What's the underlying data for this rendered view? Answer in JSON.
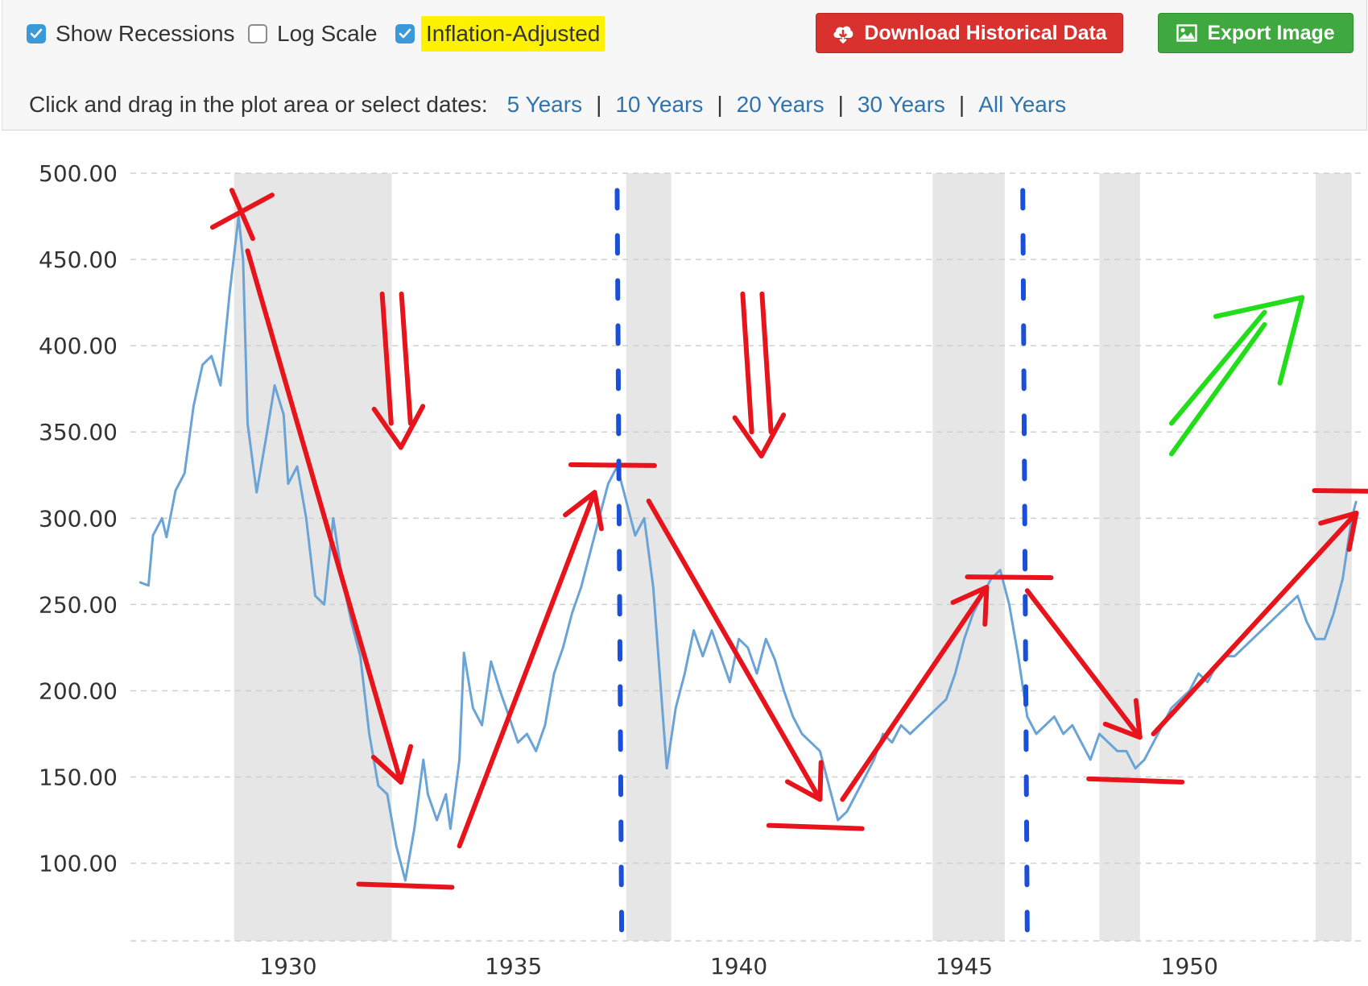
{
  "toolbar": {
    "options": [
      {
        "label": "Show Recessions",
        "checked": true
      },
      {
        "label": "Log Scale",
        "checked": false
      },
      {
        "label": "Inflation-Adjusted",
        "checked": true,
        "highlight": "#fff200"
      }
    ],
    "download_label": "Download Historical Data",
    "export_label": "Export Image",
    "download_icon": "cloud-download-icon",
    "export_icon": "image-icon",
    "colors": {
      "download": "#d9322e",
      "export": "#3fa83f",
      "link": "#3173ad",
      "checkbox": "#3a99d8"
    }
  },
  "range_selector": {
    "prompt": "Click and drag in the plot area or select dates:",
    "links": [
      "5 Years",
      "10 Years",
      "20 Years",
      "30 Years",
      "All Years"
    ],
    "separator": "|"
  },
  "chart_data": {
    "type": "line",
    "title": "",
    "xlabel": "",
    "ylabel": "",
    "ylim": [
      55,
      500
    ],
    "xlim": [
      1926.5,
      1953.8
    ],
    "x_ticks": [
      "1930",
      "1935",
      "1940",
      "1945",
      "1950"
    ],
    "y_ticks": [
      "500.00",
      "450.00",
      "400.00",
      "350.00",
      "300.00",
      "250.00",
      "200.00",
      "150.00",
      "100.00"
    ],
    "grid": "horizontal dashed",
    "line_color": "#6aa3d5",
    "recessions": [
      [
        1928.8,
        1932.3
      ],
      [
        1937.5,
        1938.5
      ],
      [
        1944.3,
        1945.9
      ],
      [
        1948.0,
        1948.9
      ],
      [
        1952.8,
        1953.6
      ]
    ],
    "series": [
      {
        "points": [
          [
            1926.7,
            263
          ],
          [
            1926.9,
            261
          ],
          [
            1927.0,
            290
          ],
          [
            1927.2,
            300
          ],
          [
            1927.3,
            289
          ],
          [
            1927.5,
            316
          ],
          [
            1927.7,
            326
          ],
          [
            1927.9,
            365
          ],
          [
            1928.1,
            389
          ],
          [
            1928.3,
            394
          ],
          [
            1928.5,
            377
          ],
          [
            1928.7,
            430
          ],
          [
            1928.9,
            475
          ],
          [
            1929.0,
            450
          ],
          [
            1929.1,
            355
          ],
          [
            1929.3,
            315
          ],
          [
            1929.5,
            345
          ],
          [
            1929.7,
            377
          ],
          [
            1929.9,
            360
          ],
          [
            1930.0,
            320
          ],
          [
            1930.2,
            330
          ],
          [
            1930.4,
            300
          ],
          [
            1930.6,
            255
          ],
          [
            1930.8,
            250
          ],
          [
            1931.0,
            300
          ],
          [
            1931.2,
            265
          ],
          [
            1931.4,
            240
          ],
          [
            1931.6,
            220
          ],
          [
            1931.8,
            175
          ],
          [
            1932.0,
            145
          ],
          [
            1932.2,
            140
          ],
          [
            1932.4,
            110
          ],
          [
            1932.6,
            90
          ],
          [
            1932.8,
            120
          ],
          [
            1933.0,
            160
          ],
          [
            1933.1,
            140
          ],
          [
            1933.3,
            125
          ],
          [
            1933.5,
            140
          ],
          [
            1933.6,
            120
          ],
          [
            1933.8,
            160
          ],
          [
            1933.9,
            222
          ],
          [
            1934.1,
            190
          ],
          [
            1934.3,
            180
          ],
          [
            1934.5,
            217
          ],
          [
            1934.7,
            200
          ],
          [
            1934.9,
            185
          ],
          [
            1935.1,
            170
          ],
          [
            1935.3,
            175
          ],
          [
            1935.5,
            165
          ],
          [
            1935.7,
            180
          ],
          [
            1935.9,
            210
          ],
          [
            1936.1,
            225
          ],
          [
            1936.3,
            245
          ],
          [
            1936.5,
            260
          ],
          [
            1936.7,
            280
          ],
          [
            1936.9,
            300
          ],
          [
            1937.1,
            320
          ],
          [
            1937.3,
            330
          ],
          [
            1937.5,
            310
          ],
          [
            1937.7,
            290
          ],
          [
            1937.9,
            300
          ],
          [
            1938.1,
            260
          ],
          [
            1938.3,
            190
          ],
          [
            1938.4,
            155
          ],
          [
            1938.6,
            190
          ],
          [
            1938.8,
            210
          ],
          [
            1939.0,
            235
          ],
          [
            1939.2,
            220
          ],
          [
            1939.4,
            235
          ],
          [
            1939.6,
            220
          ],
          [
            1939.8,
            205
          ],
          [
            1940.0,
            230
          ],
          [
            1940.2,
            225
          ],
          [
            1940.4,
            210
          ],
          [
            1940.6,
            230
          ],
          [
            1940.8,
            218
          ],
          [
            1941.0,
            200
          ],
          [
            1941.2,
            185
          ],
          [
            1941.4,
            175
          ],
          [
            1941.6,
            170
          ],
          [
            1941.8,
            165
          ],
          [
            1942.0,
            145
          ],
          [
            1942.2,
            125
          ],
          [
            1942.4,
            130
          ],
          [
            1942.6,
            140
          ],
          [
            1942.8,
            150
          ],
          [
            1943.0,
            160
          ],
          [
            1943.2,
            175
          ],
          [
            1943.4,
            170
          ],
          [
            1943.6,
            180
          ],
          [
            1943.8,
            175
          ],
          [
            1944.0,
            180
          ],
          [
            1944.2,
            185
          ],
          [
            1944.4,
            190
          ],
          [
            1944.6,
            195
          ],
          [
            1944.8,
            210
          ],
          [
            1945.0,
            230
          ],
          [
            1945.2,
            245
          ],
          [
            1945.4,
            255
          ],
          [
            1945.6,
            265
          ],
          [
            1945.8,
            270
          ],
          [
            1946.0,
            250
          ],
          [
            1946.2,
            220
          ],
          [
            1946.4,
            185
          ],
          [
            1946.6,
            175
          ],
          [
            1946.8,
            180
          ],
          [
            1947.0,
            185
          ],
          [
            1947.2,
            175
          ],
          [
            1947.4,
            180
          ],
          [
            1947.6,
            170
          ],
          [
            1947.8,
            160
          ],
          [
            1948.0,
            175
          ],
          [
            1948.2,
            170
          ],
          [
            1948.4,
            165
          ],
          [
            1948.6,
            165
          ],
          [
            1948.8,
            155
          ],
          [
            1949.0,
            160
          ],
          [
            1949.2,
            170
          ],
          [
            1949.4,
            180
          ],
          [
            1949.6,
            190
          ],
          [
            1949.8,
            195
          ],
          [
            1950.0,
            200
          ],
          [
            1950.2,
            210
          ],
          [
            1950.4,
            205
          ],
          [
            1950.6,
            215
          ],
          [
            1950.8,
            220
          ],
          [
            1951.0,
            220
          ],
          [
            1951.2,
            225
          ],
          [
            1951.4,
            230
          ],
          [
            1951.6,
            235
          ],
          [
            1951.8,
            240
          ],
          [
            1952.0,
            245
          ],
          [
            1952.2,
            250
          ],
          [
            1952.4,
            255
          ],
          [
            1952.6,
            240
          ],
          [
            1952.8,
            230
          ],
          [
            1953.0,
            230
          ],
          [
            1953.2,
            245
          ],
          [
            1953.4,
            265
          ],
          [
            1953.6,
            300
          ],
          [
            1953.7,
            310
          ]
        ]
      }
    ],
    "annotations": {
      "red_color": "#e8141c",
      "blue_color": "#1a4fd8",
      "green_color": "#22dd1a",
      "peak_markers": [
        [
          1929.0,
          478
        ],
        [
          1937.2,
          331
        ],
        [
          1946.0,
          266
        ],
        [
          1953.7,
          316
        ]
      ],
      "trough_markers": [
        [
          1932.6,
          87
        ],
        [
          1941.7,
          121
        ],
        [
          1948.8,
          148
        ]
      ],
      "trend_arrows": [
        [
          [
            1929.1,
            455
          ],
          [
            1932.5,
            147
          ]
        ],
        [
          [
            1933.8,
            110
          ],
          [
            1936.8,
            315
          ]
        ],
        [
          [
            1938.0,
            310
          ],
          [
            1941.8,
            137
          ]
        ],
        [
          [
            1942.3,
            137
          ],
          [
            1945.5,
            260
          ]
        ],
        [
          [
            1946.4,
            258
          ],
          [
            1948.9,
            173
          ]
        ],
        [
          [
            1949.2,
            175
          ],
          [
            1953.7,
            303
          ]
        ]
      ],
      "down_arrows": [
        [
          [
            1932.3,
            430
          ],
          [
            1932.5,
            355
          ]
        ],
        [
          [
            1940.3,
            430
          ],
          [
            1940.5,
            350
          ]
        ]
      ],
      "dashed_lines": [
        [
          [
            1937.3,
            490
          ],
          [
            1937.4,
            60
          ]
        ],
        [
          [
            1946.3,
            490
          ],
          [
            1946.4,
            60
          ]
        ]
      ],
      "green_arrow": [
        [
          1949.6,
          355
        ],
        [
          1952.2,
          425
        ]
      ]
    }
  }
}
